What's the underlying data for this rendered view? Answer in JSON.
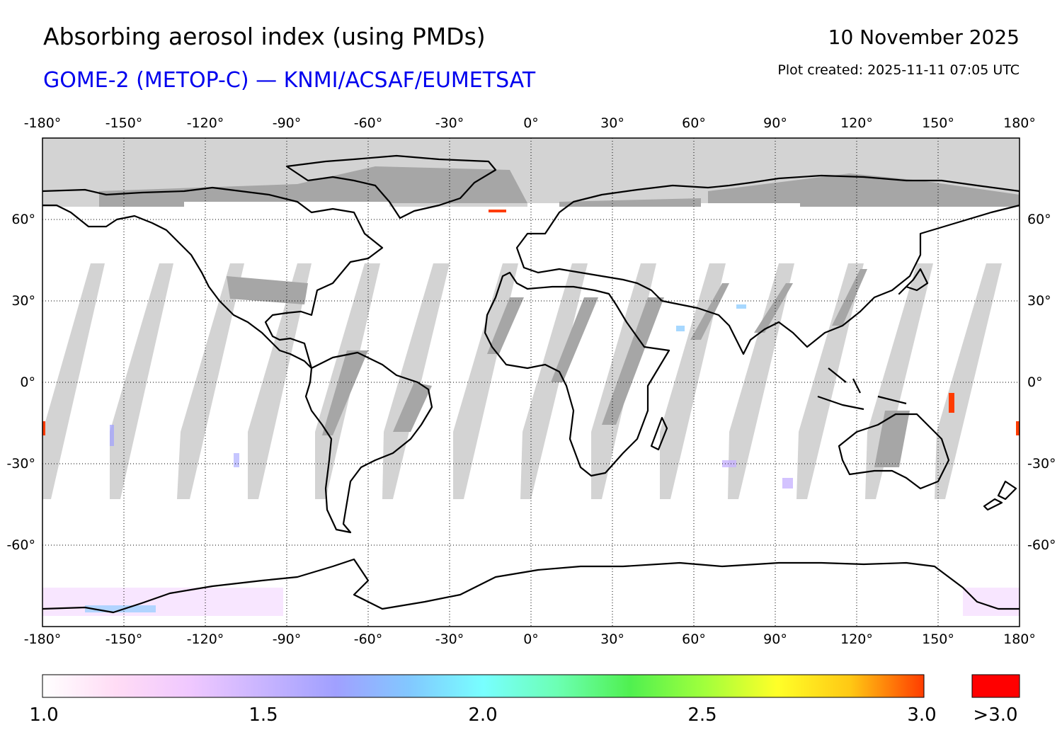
{
  "header": {
    "title": "Absorbing aerosol index (using PMDs)",
    "subtitle": "GOME-2 (METOP-C) — KNMI/ACSAF/EUMETSAT",
    "date": "10 November 2025",
    "plot_created": "Plot created: 2025-11-11 07:05 UTC"
  },
  "map": {
    "projection": "equirectangular",
    "lon_range": [
      -180,
      180
    ],
    "lat_range": [
      -90,
      90
    ],
    "lon_ticks": [
      "-180°",
      "-150°",
      "-120°",
      "-90°",
      "-60°",
      "-30°",
      "0°",
      "30°",
      "60°",
      "90°",
      "120°",
      "150°",
      "180°"
    ],
    "lat_ticks": [
      "60°",
      "30°",
      "0°",
      "-30°",
      "-60°"
    ],
    "grid": true,
    "no_data_color": "#d3d3d3",
    "missing_swath_color": "#a6a6a6"
  },
  "colorbar": {
    "tick_labels": [
      "1.0",
      "1.5",
      "2.0",
      "2.5",
      "3.0"
    ],
    "overflow_label": ">3.0",
    "overflow_color": "#ff0000",
    "gradient_colors": [
      "#ffffff",
      "#ffdcf5",
      "#f0c8ff",
      "#c8b4ff",
      "#a0a0ff",
      "#82c8ff",
      "#78ffff",
      "#6cffb4",
      "#50f050",
      "#a0ff3c",
      "#ffff28",
      "#ffc814",
      "#ff3c00"
    ]
  }
}
